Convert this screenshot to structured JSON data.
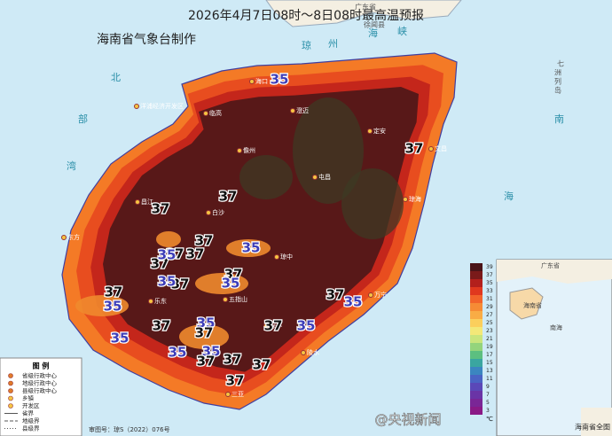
{
  "title": [
    "2026年4月7日08时～8日08时最高温预报",
    "海南省气象台制作"
  ],
  "places": [
    "海口",
    "文昌",
    "定安",
    "澄迈",
    "临高",
    "儋州",
    "屯昌",
    "琼海",
    "白沙",
    "昌江",
    "琼中",
    "万宁",
    "东方",
    "五指山",
    "乐东",
    "保亭",
    "陵水",
    "三亚",
    "洋浦经济开发区"
  ],
  "sea_labels": [
    "琼",
    "州",
    "海",
    "峡",
    "北",
    "部",
    "湾",
    "南",
    "海",
    "广东省",
    "徐闻县",
    "七",
    "洲",
    "列",
    "岛"
  ],
  "contour_labels": [
    35,
    37,
    37,
    37,
    37,
    37,
    37,
    35,
    37,
    35,
    37,
    37,
    35,
    37,
    35,
    35,
    37,
    35,
    35,
    37,
    35,
    37,
    35,
    37,
    37,
    37,
    37,
    35,
    37,
    35
  ],
  "colorbar": {
    "ticks": [
      39,
      37,
      35,
      33,
      31,
      29,
      27,
      25,
      23,
      21,
      19,
      17,
      15,
      13,
      11,
      9,
      7,
      5,
      3
    ],
    "colors": [
      "#4a1418",
      "#7a1a1a",
      "#b3201c",
      "#e0381e",
      "#f2642a",
      "#f68b35",
      "#f9ac45",
      "#fbcf5c",
      "#f3e878",
      "#c9e57d",
      "#94d47c",
      "#5cbf80",
      "#3aa6a0",
      "#3b86c0",
      "#4a64c4",
      "#5a48b8",
      "#6a34a6",
      "#7a2696",
      "#8a1a86"
    ],
    "unit": "℃"
  },
  "legend": {
    "title": "图 例",
    "items": [
      "省级行政中心",
      "地级行政中心",
      "县级行政中心",
      "乡镇",
      "开发区",
      "省界",
      "地级界",
      "县级界"
    ]
  },
  "inset": {
    "title": "海南省全图",
    "labels": [
      "广东省",
      "海南省",
      "南海"
    ]
  },
  "approval_number": "审图号：琼S（2022）076号",
  "watermark": "@央视新闻"
}
